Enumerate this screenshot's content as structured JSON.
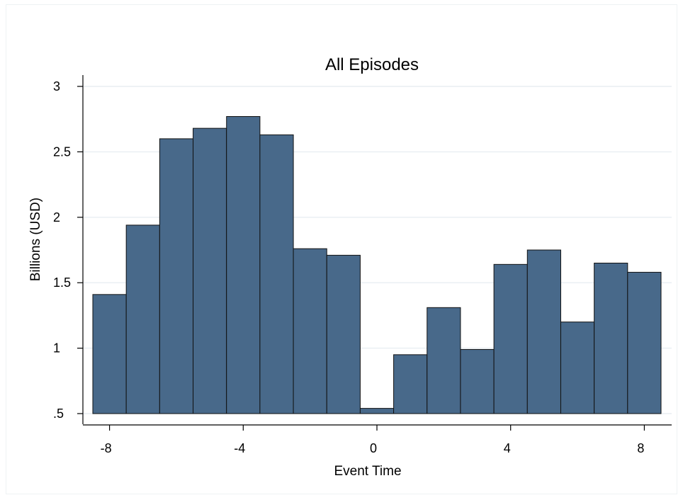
{
  "chart_data": {
    "type": "bar",
    "title": "All Episodes",
    "xlabel": "Event Time",
    "ylabel": "Billions (USD)",
    "x": [
      -8,
      -7,
      -6,
      -5,
      -4,
      -3,
      -2,
      -1,
      0,
      1,
      2,
      3,
      4,
      5,
      6,
      7,
      8
    ],
    "values": [
      1.41,
      1.94,
      2.6,
      2.68,
      2.77,
      2.63,
      1.76,
      1.71,
      0.54,
      0.95,
      1.31,
      0.99,
      1.64,
      1.75,
      1.2,
      1.65,
      1.58
    ],
    "xlim": [
      -8.5,
      8.5
    ],
    "ylim": [
      0.5,
      3.0
    ],
    "xticks": [
      -8,
      -4,
      0,
      4,
      8
    ],
    "xtick_labels": [
      "-8",
      "-4",
      "0",
      "4",
      "8"
    ],
    "yticks": [
      0.5,
      1,
      1.5,
      2,
      2.5,
      3
    ],
    "ytick_labels": [
      ".5",
      "1",
      "1.5",
      "2",
      "2.5",
      "3"
    ],
    "grid": true,
    "bar_color": "#48698a",
    "edge_color": "#111111",
    "grid_color": "#e8eef2"
  }
}
